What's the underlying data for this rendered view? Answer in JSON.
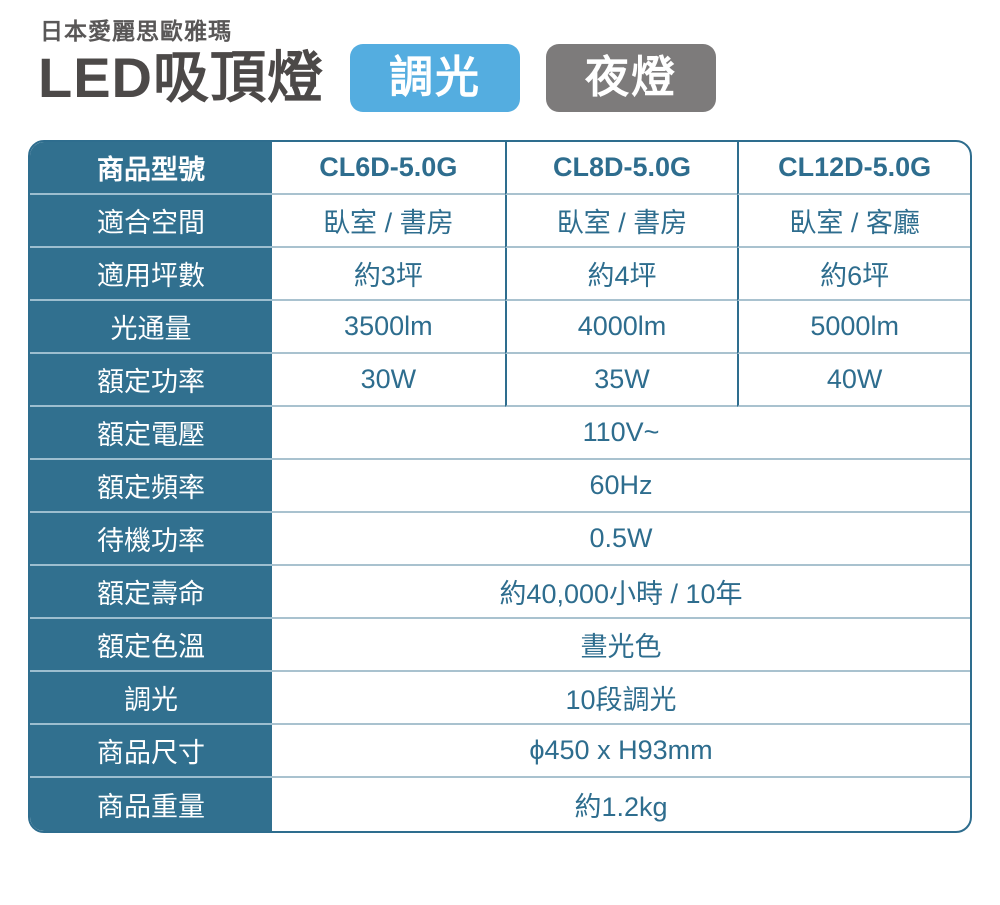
{
  "header": {
    "brand": "日本愛麗思歐雅瑪",
    "title": "LED吸頂燈",
    "badges": [
      {
        "label": "調光",
        "color": "#54ade0"
      },
      {
        "label": "夜燈",
        "color": "#7d7b7b"
      }
    ]
  },
  "colors": {
    "teal": "#31708f",
    "teal-border": "#2e6d8e",
    "divider": "#a9c2cf",
    "value-text": "#2e6d8e",
    "title-text": "#4c4948",
    "brand-text": "#595757"
  },
  "table": {
    "rows": [
      {
        "label": "商品型號",
        "values": [
          "CL6D-5.0G",
          "CL8D-5.0G",
          "CL12D-5.0G"
        ]
      },
      {
        "label": "適合空間",
        "values": [
          "臥室 / 書房",
          "臥室 / 書房",
          "臥室 / 客廳"
        ]
      },
      {
        "label": "適用坪數",
        "values": [
          "約3坪",
          "約4坪",
          "約6坪"
        ]
      },
      {
        "label": "光通量",
        "values": [
          "3500lm",
          "4000lm",
          "5000lm"
        ]
      },
      {
        "label": "額定功率",
        "values": [
          "30W",
          "35W",
          "40W"
        ]
      },
      {
        "label": "額定電壓",
        "values": [
          "110V~"
        ]
      },
      {
        "label": "額定頻率",
        "values": [
          "60Hz"
        ]
      },
      {
        "label": "待機功率",
        "values": [
          "0.5W"
        ]
      },
      {
        "label": "額定壽命",
        "values": [
          "約40,000小時 / 10年"
        ]
      },
      {
        "label": "額定色溫",
        "values": [
          "晝光色"
        ]
      },
      {
        "label": "調光",
        "values": [
          "10段調光"
        ]
      },
      {
        "label": "商品尺寸",
        "values": [
          "ϕ450 x H93mm"
        ]
      },
      {
        "label": "商品重量",
        "values": [
          "約1.2kg"
        ]
      }
    ]
  }
}
